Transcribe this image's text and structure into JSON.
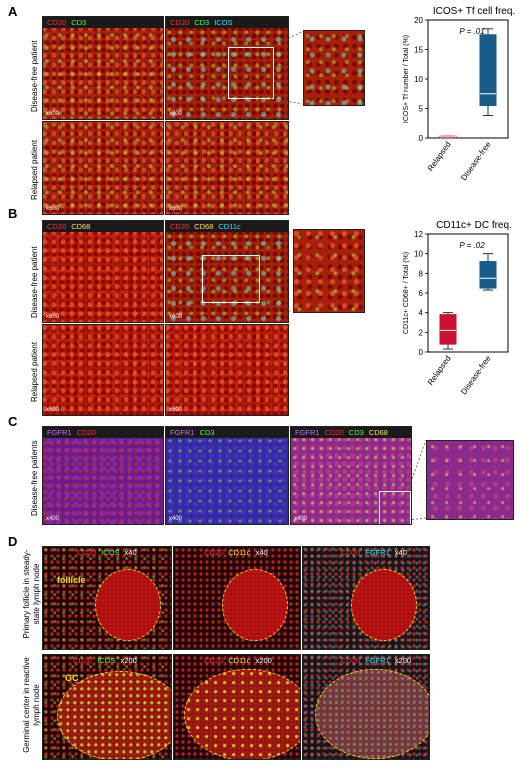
{
  "panels": {
    "A": {
      "letter": "A",
      "row_labels": [
        "Disease-free patient",
        "Relapsed patient"
      ],
      "col1_header": [
        {
          "text": "CD20",
          "color": "#ff3030"
        },
        {
          "text": "CD3",
          "color": "#4cff4c"
        }
      ],
      "col2_header": [
        {
          "text": "CD20",
          "color": "#ff3030"
        },
        {
          "text": "CD3",
          "color": "#4cff4c"
        },
        {
          "text": "ICOS",
          "color": "#33e6ff"
        }
      ],
      "magnification": "x600"
    },
    "B": {
      "letter": "B",
      "row_labels": [
        "Disease-free patient",
        "Relapsed patient"
      ],
      "col1_header": [
        {
          "text": "CD20",
          "color": "#ff3030"
        },
        {
          "text": "CD68",
          "color": "#ffe34a"
        }
      ],
      "col2_header": [
        {
          "text": "CD20",
          "color": "#ff3030"
        },
        {
          "text": "CD68",
          "color": "#ffe34a"
        },
        {
          "text": "CD11c",
          "color": "#33e6ff"
        }
      ],
      "magnification": "x600"
    },
    "C": {
      "letter": "C",
      "row_label": "Disease-free patients",
      "col1_header": [
        {
          "text": "FGFR1",
          "color": "#c86bff"
        },
        {
          "text": "CD20",
          "color": "#ff3030"
        }
      ],
      "col2_header": [
        {
          "text": "FGFR1",
          "color": "#c86bff"
        },
        {
          "text": "CD3",
          "color": "#4cff4c"
        }
      ],
      "col3_header": [
        {
          "text": "FGFR1",
          "color": "#c86bff"
        },
        {
          "text": "CD20",
          "color": "#ff3030"
        },
        {
          "text": "CD3",
          "color": "#4cff4c"
        },
        {
          "text": "CD68",
          "color": "#ffe34a"
        }
      ],
      "magnification": "x400"
    },
    "D": {
      "letter": "D",
      "row_labels": [
        "Primary follicle in steady-state lymph node",
        "Germinal center in reactive lymph node"
      ],
      "row1_mag": "x40",
      "row2_mag": "x200",
      "col1_header": [
        {
          "text": "CD20",
          "color": "#ff3030"
        },
        {
          "text": "ICOS",
          "color": "#4cff4c"
        }
      ],
      "col2_header": [
        {
          "text": "CD20",
          "color": "#ff3030"
        },
        {
          "text": "CD11c",
          "color": "#ffe34a"
        }
      ],
      "col3_header": [
        {
          "text": "CD20",
          "color": "#ff3030"
        },
        {
          "text": "FGFR1",
          "color": "#33e6ff"
        }
      ],
      "follicle_label": "follicle",
      "gc_label": "GC"
    }
  },
  "chart_data": [
    {
      "type": "box",
      "title": "ICOS+ Tf cell freq.",
      "ylabel": "ICOS+ Tf number / Total (%)",
      "categories": [
        "Relapsed",
        "Disease-free"
      ],
      "ylim": [
        0,
        20
      ],
      "yticks": [
        0,
        5,
        10,
        15,
        20
      ],
      "annotation": "P = .01",
      "boxes": [
        {
          "category": "Relapsed",
          "min": 0.1,
          "q1": 0.1,
          "median": 0.2,
          "q3": 0.3,
          "max": 0.3,
          "color": "#cc1133"
        },
        {
          "category": "Disease-free",
          "min": 3.8,
          "q1": 5.5,
          "median": 7.5,
          "q3": 17.5,
          "max": 18.5,
          "color": "#1b5b8c"
        }
      ]
    },
    {
      "type": "box",
      "title": "CD11c+ DC freq.",
      "ylabel": "CD11c+ CD68+ / Total (%)",
      "categories": [
        "Relapsed",
        "Disease-free"
      ],
      "ylim": [
        0,
        12
      ],
      "yticks": [
        0,
        2,
        4,
        6,
        8,
        10,
        12
      ],
      "annotation": "P = .02",
      "boxes": [
        {
          "category": "Relapsed",
          "min": 0.3,
          "q1": 0.8,
          "median": 2.2,
          "q3": 3.8,
          "max": 4.0,
          "color": "#cc1133"
        },
        {
          "category": "Disease-free",
          "min": 6.3,
          "q1": 6.5,
          "median": 7.5,
          "q3": 9.2,
          "max": 10.0,
          "color": "#1b5b8c"
        }
      ]
    }
  ]
}
